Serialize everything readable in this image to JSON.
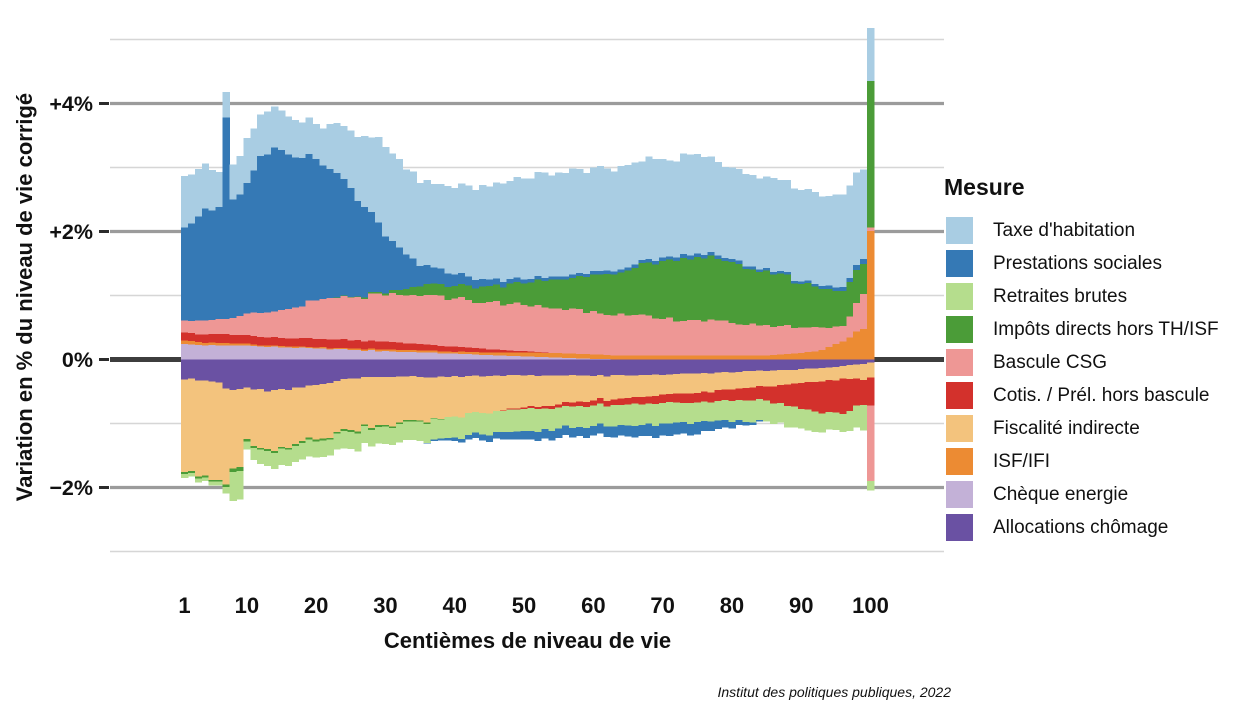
{
  "figure": {
    "y_axis": {
      "title": "Variation en % du niveau de vie corrigé",
      "ticks": [
        {
          "label": "+4%",
          "value": 4
        },
        {
          "label": "+2%",
          "value": 2
        },
        {
          "label": "0%",
          "value": 0
        },
        {
          "label": "−2%",
          "value": -2
        }
      ],
      "major_gridlines": [
        4,
        2,
        -2
      ],
      "minor_gridlines": [
        5,
        3,
        1,
        -1,
        -3
      ],
      "zero_line": 0
    },
    "x_axis": {
      "title": "Centièmes de niveau de vie",
      "ticks": [
        1,
        10,
        20,
        30,
        40,
        50,
        60,
        70,
        80,
        90,
        100
      ]
    },
    "legend": {
      "title": "Mesure",
      "order": [
        "taxe",
        "prestations",
        "retraites",
        "impots",
        "csg",
        "cotis",
        "fisc",
        "isf",
        "cheque",
        "alloc"
      ]
    },
    "caption": "Institut des politiques publiques, 2022"
  },
  "chart_data": {
    "type": "bar",
    "stacked": true,
    "title": "",
    "xlabel": "Centièmes de niveau de vie",
    "ylabel": "Variation en % du niveau de vie corrigé",
    "unit": "% of corrected living standard",
    "xlim": [
      1,
      100
    ],
    "ylim": [
      -3.5,
      5.4
    ],
    "grid": true,
    "legend_position": "right",
    "sampling_note": "values estimated from pixels at keyframe centiles; bars 1-100 linearly interpolated between keyframes; series stack away from zero in listed order",
    "keyframe_centiles": [
      1,
      4,
      6,
      7,
      8,
      9,
      10,
      12,
      14,
      17,
      20,
      25,
      30,
      35,
      40,
      45,
      50,
      55,
      60,
      65,
      70,
      75,
      80,
      85,
      90,
      93,
      96,
      99,
      100
    ],
    "series": [
      {
        "key": "alloc",
        "label": "Allocations chômage",
        "color": "#6a51a3",
        "pos": null,
        "neg": [
          -0.31,
          -0.33,
          -0.36,
          -0.45,
          -0.48,
          -0.46,
          -0.44,
          -0.46,
          -0.48,
          -0.44,
          -0.4,
          -0.3,
          -0.27,
          -0.27,
          -0.26,
          -0.26,
          -0.25,
          -0.25,
          -0.26,
          -0.25,
          -0.24,
          -0.22,
          -0.2,
          -0.18,
          -0.15,
          -0.13,
          -0.1,
          -0.07,
          -0.05
        ]
      },
      {
        "key": "cheque",
        "label": "Chèque energie",
        "color": "#c3b1d7",
        "pos": [
          0.24,
          0.22,
          0.22,
          0.22,
          0.22,
          0.22,
          0.22,
          0.2,
          0.2,
          0.18,
          0.17,
          0.15,
          0.13,
          0.11,
          0.09,
          0.07,
          0.05,
          0.03,
          0.01,
          0,
          0,
          0,
          0,
          0,
          0,
          0,
          0,
          0,
          0
        ],
        "neg": null
      },
      {
        "key": "isf",
        "label": "ISF/IFI",
        "color": "#ec8b33",
        "pos": [
          0.06,
          0.04,
          0.04,
          0.04,
          0.03,
          0.03,
          0.03,
          0.02,
          0.02,
          0.02,
          0.02,
          0.02,
          0.03,
          0.03,
          0.03,
          0.04,
          0.06,
          0.07,
          0.07,
          0.06,
          0.06,
          0.06,
          0.06,
          0.06,
          0.1,
          0.15,
          0.28,
          0.48,
          2.01
        ],
        "neg": null
      },
      {
        "key": "fisc",
        "label": "Fiscalité indirecte",
        "color": "#f3c37d",
        "pos": null,
        "neg": [
          -1.45,
          -1.48,
          -1.52,
          -1.5,
          -1.22,
          -1.22,
          -0.8,
          -0.92,
          -0.95,
          -0.88,
          -0.85,
          -0.8,
          -0.75,
          -0.68,
          -0.63,
          -0.58,
          -0.5,
          -0.45,
          -0.38,
          -0.35,
          -0.31,
          -0.3,
          -0.27,
          -0.24,
          -0.22,
          -0.21,
          -0.2,
          -0.25,
          -0.23
        ]
      },
      {
        "key": "cotis",
        "label": "Cotis. / Prél. hors bascule",
        "color": "#d3312c",
        "pos": [
          0.12,
          0.13,
          0.14,
          0.14,
          0.13,
          0.13,
          0.13,
          0.13,
          0.13,
          0.13,
          0.13,
          0.13,
          0.12,
          0.1,
          0.08,
          0.05,
          0.02,
          0,
          0,
          0,
          0,
          0,
          0,
          0,
          0,
          0,
          0,
          0,
          0
        ],
        "neg": [
          0,
          0,
          0,
          0,
          0,
          0,
          0,
          0,
          0,
          0,
          0,
          0,
          0,
          0,
          0,
          0,
          -0.02,
          -0.05,
          -0.08,
          -0.1,
          -0.13,
          -0.15,
          -0.18,
          -0.22,
          -0.4,
          -0.5,
          -0.55,
          -0.39,
          -0.44
        ]
      },
      {
        "key": "csg",
        "label": "Bascule CSG",
        "color": "#ee9795",
        "pos": [
          0.19,
          0.22,
          0.23,
          0.23,
          0.27,
          0.3,
          0.34,
          0.38,
          0.4,
          0.48,
          0.6,
          0.67,
          0.72,
          0.75,
          0.75,
          0.74,
          0.72,
          0.7,
          0.68,
          0.63,
          0.57,
          0.56,
          0.51,
          0.48,
          0.4,
          0.35,
          0.24,
          0.54,
          0.05
        ],
        "neg": [
          0,
          0,
          0,
          0,
          0,
          0,
          0,
          0,
          0,
          0,
          0,
          0,
          0,
          0,
          0,
          0,
          0,
          0,
          0,
          0,
          0,
          0,
          0,
          0,
          0,
          0,
          0,
          0,
          -1.18
        ]
      },
      {
        "key": "impots",
        "label": "Impôts directs hors TH/ISF",
        "color": "#4b9c38",
        "pos": [
          0,
          0,
          0,
          0,
          0,
          0,
          0,
          0,
          0,
          0,
          0,
          0.01,
          0.03,
          0.15,
          0.2,
          0.25,
          0.34,
          0.45,
          0.57,
          0.7,
          0.91,
          0.98,
          0.95,
          0.85,
          0.68,
          0.6,
          0.55,
          0.47,
          2.29
        ],
        "neg": [
          -0.03,
          -0.03,
          -0.03,
          -0.04,
          -0.06,
          -0.06,
          -0.04,
          -0.03,
          -0.03,
          -0.03,
          -0.03,
          -0.03,
          -0.03,
          -0.02,
          0,
          0,
          0,
          0,
          0,
          0,
          0,
          0,
          0,
          0,
          0,
          0,
          0,
          0,
          0
        ]
      },
      {
        "key": "retraites",
        "label": "Retraites brutes",
        "color": "#b5dd8d",
        "pos": null,
        "neg": [
          -0.06,
          -0.06,
          -0.06,
          -0.1,
          -0.45,
          -0.45,
          -0.13,
          -0.22,
          -0.25,
          -0.25,
          -0.25,
          -0.27,
          -0.27,
          -0.3,
          -0.33,
          -0.35,
          -0.35,
          -0.33,
          -0.32,
          -0.33,
          -0.32,
          -0.31,
          -0.33,
          -0.33,
          -0.31,
          -0.3,
          -0.28,
          -0.4,
          -0.15
        ]
      },
      {
        "key": "prestations",
        "label": "Prestations sociales",
        "color": "#3579b5",
        "pos": [
          1.45,
          1.75,
          1.75,
          3.15,
          1.85,
          1.9,
          2.04,
          2.45,
          2.56,
          2.35,
          2.21,
          1.7,
          0.89,
          0.32,
          0.18,
          0.1,
          0.06,
          0.05,
          0.05,
          0.05,
          0.05,
          0.06,
          0.05,
          0.04,
          0.04,
          0.05,
          0.06,
          0.08,
          0
        ],
        "neg": [
          0,
          0,
          0,
          0,
          0,
          0,
          0,
          0,
          0,
          0,
          0,
          0,
          0,
          0,
          -0.05,
          -0.1,
          -0.13,
          -0.15,
          -0.15,
          -0.17,
          -0.19,
          -0.19,
          -0.1,
          0,
          0,
          0,
          0,
          0,
          0
        ]
      },
      {
        "key": "taxe",
        "label": "Taxe d'habitation",
        "color": "#a9cde3",
        "pos": [
          0.81,
          0.7,
          0.55,
          0.4,
          0.55,
          0.6,
          0.7,
          0.65,
          0.64,
          0.58,
          0.55,
          0.9,
          1.4,
          1.3,
          1.35,
          1.45,
          1.58,
          1.62,
          1.62,
          1.6,
          1.54,
          1.55,
          1.43,
          1.43,
          1.43,
          1.4,
          1.45,
          1.4,
          0.83
        ],
        "neg": null
      }
    ],
    "style": {
      "zero_line_color": "#3d3d3d",
      "major_grid_color": "#9b9b9b",
      "minor_grid_color": "#d6d6d6",
      "tick_color": "#2b2b2b",
      "text_color": "#111111",
      "background": "#ffffff"
    }
  }
}
